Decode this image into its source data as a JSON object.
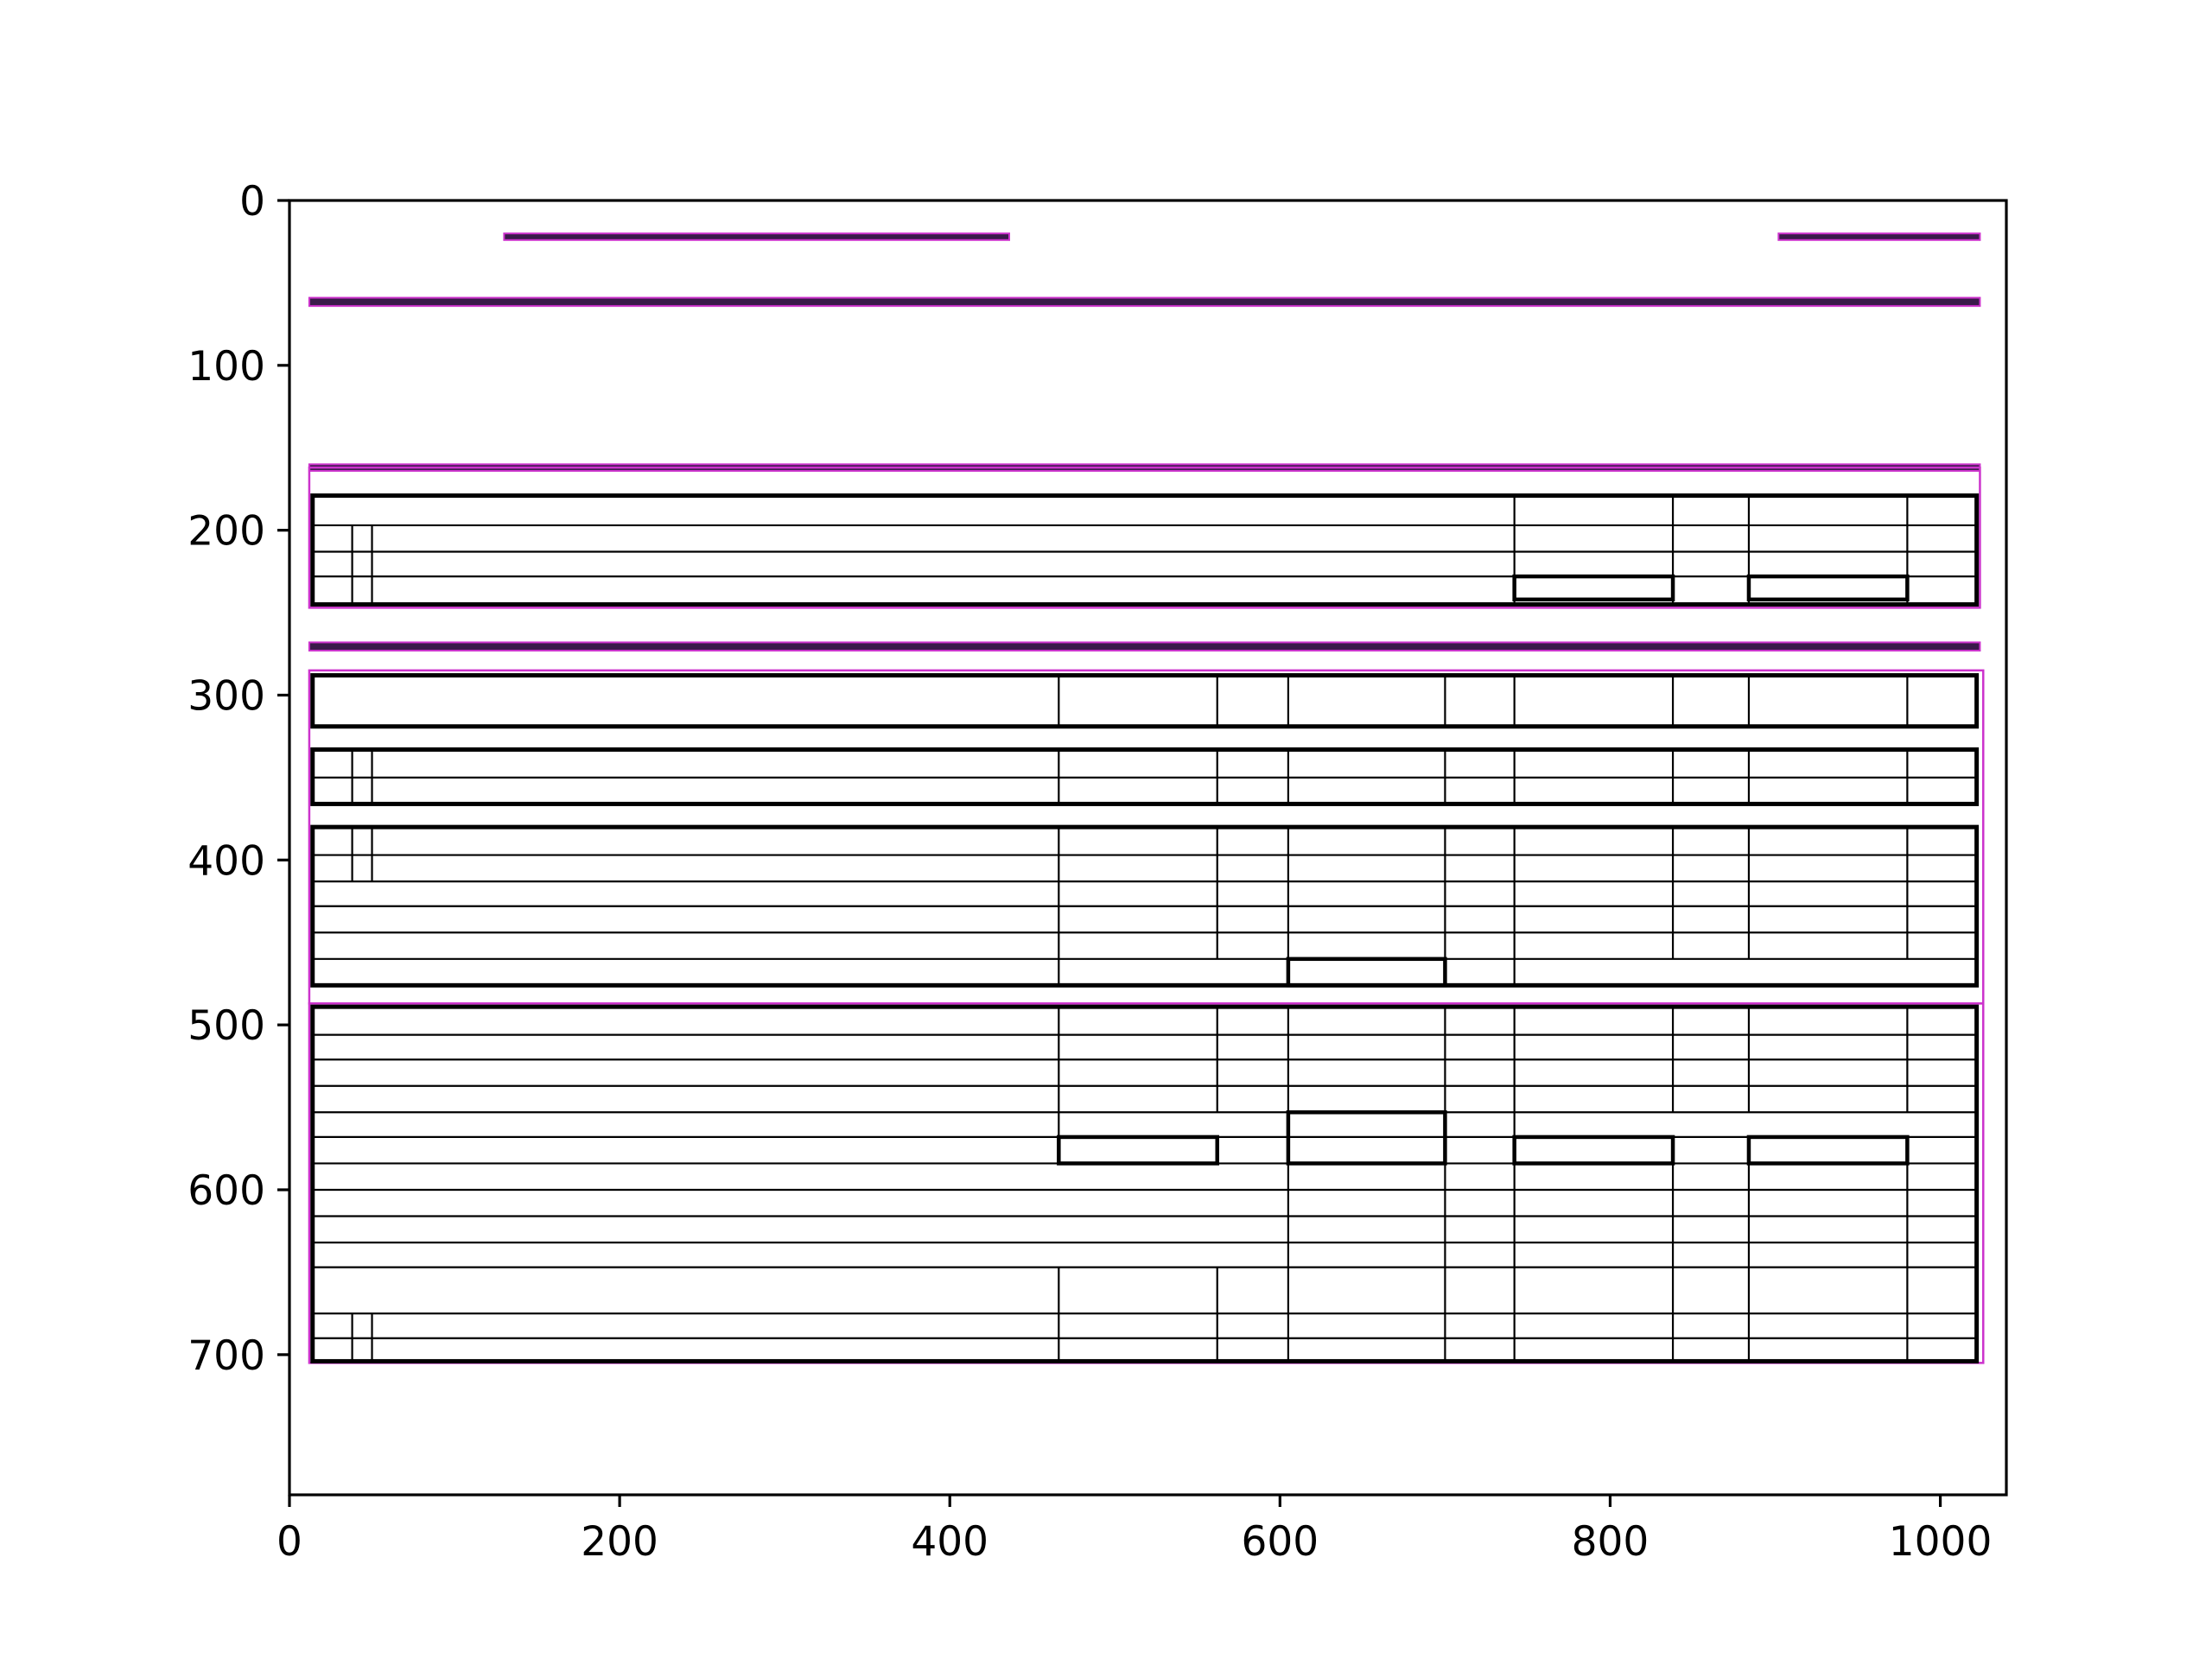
{
  "chart_data": {
    "type": "layout-boxes",
    "title": "",
    "xlabel": "",
    "ylabel": "",
    "xlim": [
      0,
      1040
    ],
    "ylim": [
      785,
      0
    ],
    "y_inverted": true,
    "x_ticks": [
      0,
      200,
      400,
      600,
      800,
      1000
    ],
    "y_ticks": [
      0,
      100,
      200,
      300,
      400,
      500,
      600,
      700
    ],
    "grid": false,
    "legend": "none",
    "colors": {
      "region_outline": "#cc33cc",
      "region_fill": "#3a1a4a",
      "box_stroke": "#000000",
      "frame": "#000000"
    },
    "regions": [
      {
        "x0": 130,
        "y0": 20,
        "x1": 436,
        "y1": 24,
        "filled": true
      },
      {
        "x0": 902,
        "y0": 20,
        "x1": 1024,
        "y1": 24,
        "filled": true
      },
      {
        "x0": 12,
        "y0": 59,
        "x1": 1024,
        "y1": 64,
        "filled": true
      },
      {
        "x0": 12,
        "y0": 160,
        "x1": 1024,
        "y1": 164,
        "filled": true
      },
      {
        "x0": 12,
        "y0": 162,
        "x1": 1024,
        "y1": 247,
        "filled": false
      },
      {
        "x0": 12,
        "y0": 268,
        "x1": 1024,
        "y1": 273,
        "filled": true
      },
      {
        "x0": 12,
        "y0": 285,
        "x1": 1026,
        "y1": 487,
        "filled": false
      },
      {
        "x0": 12,
        "y0": 487,
        "x1": 1026,
        "y1": 705,
        "filled": false
      }
    ],
    "tables": [
      {
        "x0": 14,
        "y0": 179,
        "x1": 1022,
        "y1": 245,
        "rows": [
          179,
          197,
          213,
          228,
          245
        ],
        "cols": [
          {
            "x": 38,
            "y0": 197,
            "y1": 245
          },
          {
            "x": 50,
            "y0": 197,
            "y1": 245
          },
          {
            "x": 742,
            "y0": 179,
            "y1": 245
          },
          {
            "x": 838,
            "y0": 179,
            "y1": 245
          },
          {
            "x": 884,
            "y0": 179,
            "y1": 245
          },
          {
            "x": 980,
            "y0": 179,
            "y1": 245
          }
        ],
        "cells": [
          {
            "x0": 742,
            "y0": 228,
            "x1": 838,
            "y1": 242
          },
          {
            "x0": 884,
            "y0": 228,
            "x1": 980,
            "y1": 242
          }
        ]
      },
      {
        "x0": 14,
        "y0": 288,
        "x1": 1022,
        "y1": 319,
        "rows": [
          288,
          319
        ],
        "cols": [
          {
            "x": 466,
            "y0": 288,
            "y1": 319
          },
          {
            "x": 562,
            "y0": 288,
            "y1": 319
          },
          {
            "x": 605,
            "y0": 288,
            "y1": 319
          },
          {
            "x": 700,
            "y0": 288,
            "y1": 319
          },
          {
            "x": 742,
            "y0": 288,
            "y1": 319
          },
          {
            "x": 838,
            "y0": 288,
            "y1": 319
          },
          {
            "x": 884,
            "y0": 288,
            "y1": 319
          },
          {
            "x": 980,
            "y0": 288,
            "y1": 319
          }
        ],
        "cells": []
      },
      {
        "x0": 14,
        "y0": 333,
        "x1": 1022,
        "y1": 366,
        "rows": [
          333,
          350,
          366
        ],
        "cols": [
          {
            "x": 38,
            "y0": 333,
            "y1": 366
          },
          {
            "x": 50,
            "y0": 333,
            "y1": 366
          },
          {
            "x": 466,
            "y0": 333,
            "y1": 366
          },
          {
            "x": 562,
            "y0": 333,
            "y1": 366
          },
          {
            "x": 605,
            "y0": 333,
            "y1": 366
          },
          {
            "x": 700,
            "y0": 333,
            "y1": 366
          },
          {
            "x": 742,
            "y0": 333,
            "y1": 366
          },
          {
            "x": 838,
            "y0": 333,
            "y1": 366
          },
          {
            "x": 884,
            "y0": 333,
            "y1": 366
          },
          {
            "x": 980,
            "y0": 333,
            "y1": 366
          }
        ],
        "cells": []
      },
      {
        "x0": 14,
        "y0": 380,
        "x1": 1022,
        "y1": 476,
        "rows": [
          380,
          397,
          413,
          428,
          444,
          460,
          476
        ],
        "cols": [
          {
            "x": 38,
            "y0": 380,
            "y1": 413
          },
          {
            "x": 50,
            "y0": 380,
            "y1": 413
          },
          {
            "x": 466,
            "y0": 380,
            "y1": 476
          },
          {
            "x": 562,
            "y0": 380,
            "y1": 460
          },
          {
            "x": 605,
            "y0": 380,
            "y1": 476
          },
          {
            "x": 700,
            "y0": 380,
            "y1": 476
          },
          {
            "x": 742,
            "y0": 380,
            "y1": 476
          },
          {
            "x": 838,
            "y0": 380,
            "y1": 460
          },
          {
            "x": 884,
            "y0": 380,
            "y1": 460
          },
          {
            "x": 980,
            "y0": 380,
            "y1": 460
          }
        ],
        "cells": [
          {
            "x0": 605,
            "y0": 460,
            "x1": 700,
            "y1": 476
          }
        ]
      },
      {
        "x0": 14,
        "y0": 489,
        "x1": 1022,
        "y1": 704,
        "rows": [
          489,
          506,
          521,
          537,
          553,
          568,
          584,
          600,
          616,
          632,
          647,
          675,
          690,
          704
        ],
        "cols": [
          {
            "x": 466,
            "y0": 489,
            "y1": 584
          },
          {
            "x": 562,
            "y0": 489,
            "y1": 553
          },
          {
            "x": 605,
            "y0": 489,
            "y1": 704
          },
          {
            "x": 700,
            "y0": 489,
            "y1": 704
          },
          {
            "x": 742,
            "y0": 489,
            "y1": 704
          },
          {
            "x": 838,
            "y0": 489,
            "y1": 553
          },
          {
            "x": 884,
            "y0": 489,
            "y1": 553
          },
          {
            "x": 980,
            "y0": 489,
            "y1": 553
          },
          {
            "x": 838,
            "y0": 568,
            "y1": 704
          },
          {
            "x": 884,
            "y0": 568,
            "y1": 704
          },
          {
            "x": 980,
            "y0": 568,
            "y1": 704
          },
          {
            "x": 466,
            "y0": 647,
            "y1": 704
          },
          {
            "x": 562,
            "y0": 647,
            "y1": 704
          },
          {
            "x": 38,
            "y0": 675,
            "y1": 704
          },
          {
            "x": 50,
            "y0": 675,
            "y1": 704
          }
        ],
        "cells": [
          {
            "x0": 466,
            "y0": 568,
            "x1": 562,
            "y1": 584
          },
          {
            "x0": 605,
            "y0": 553,
            "x1": 700,
            "y1": 584
          },
          {
            "x0": 742,
            "y0": 568,
            "x1": 838,
            "y1": 584
          },
          {
            "x0": 884,
            "y0": 568,
            "x1": 980,
            "y1": 584
          }
        ]
      }
    ]
  }
}
